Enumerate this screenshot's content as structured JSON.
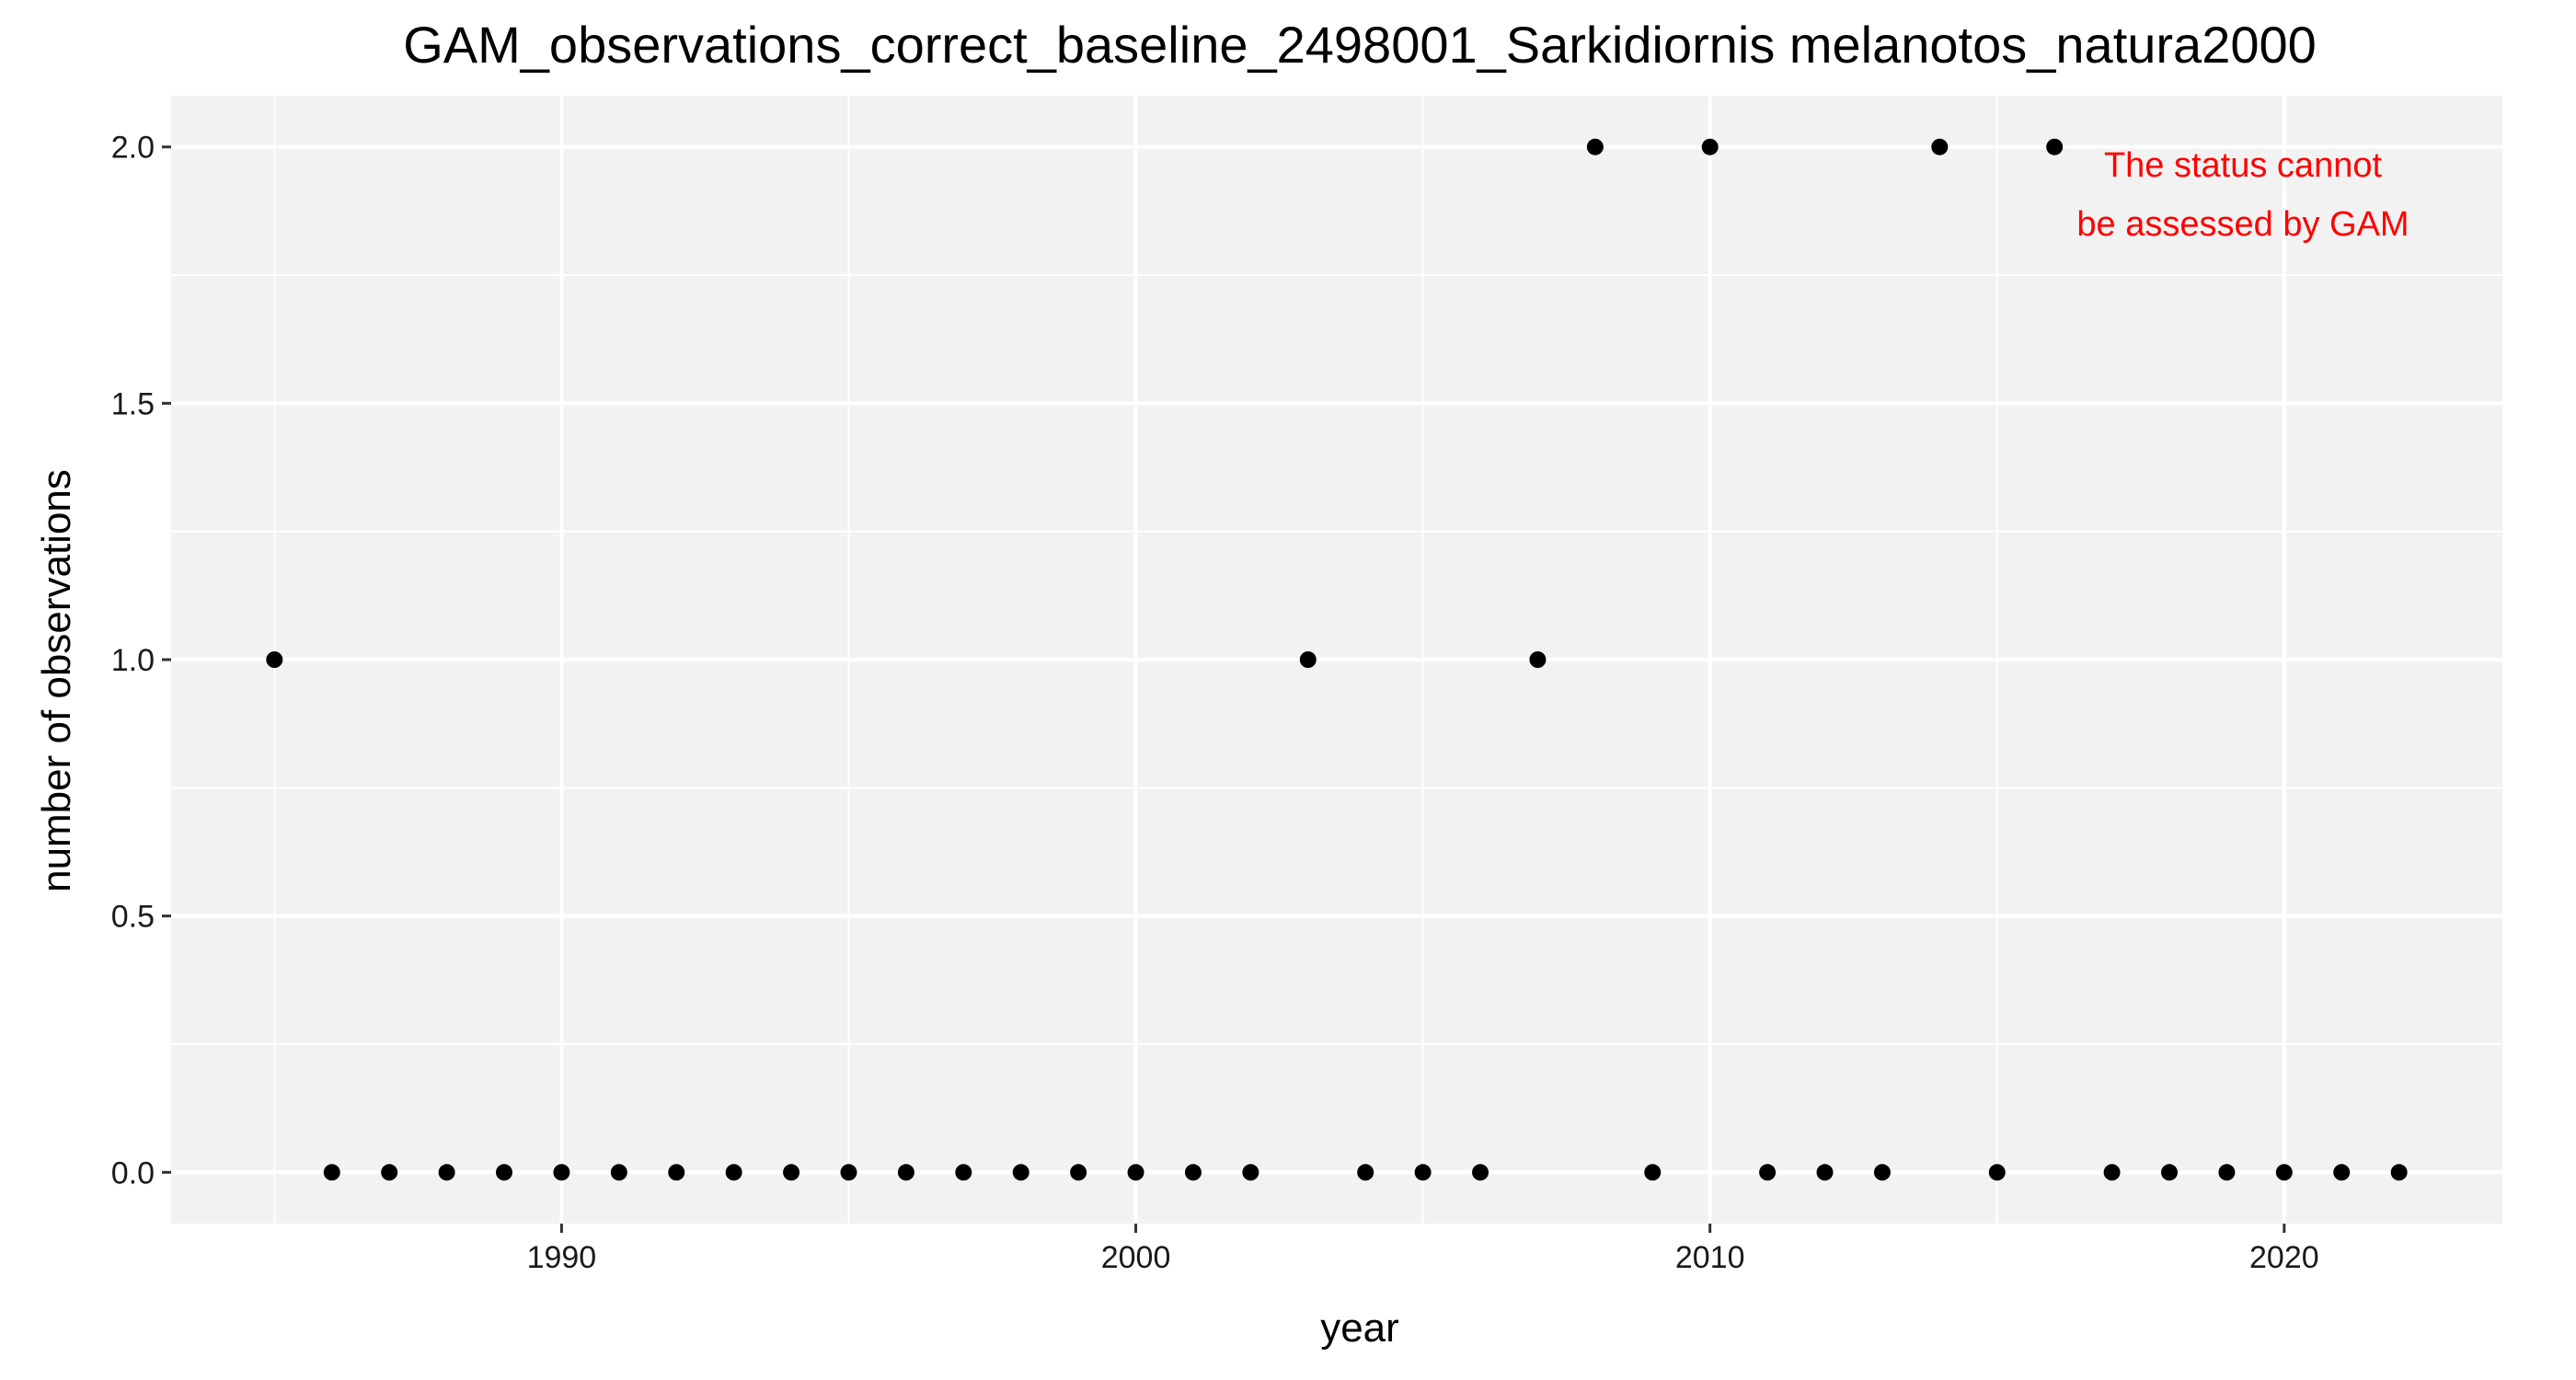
{
  "chart_data": {
    "type": "scatter",
    "title": "GAM_observations_correct_baseline_2498001_Sarkidiornis melanotos_natura2000",
    "xlabel": "year",
    "ylabel": "number of observations",
    "xlim": [
      1983.2,
      2023.8
    ],
    "ylim": [
      -0.1,
      2.1
    ],
    "x_ticks": [
      1990,
      2000,
      2010,
      2020
    ],
    "x_tick_labels": [
      "1990",
      "2000",
      "2010",
      "2020"
    ],
    "y_ticks": [
      0,
      0.5,
      1,
      1.5,
      2
    ],
    "y_tick_labels": [
      "0.0",
      "0.5",
      "1.0",
      "1.5",
      "2.0"
    ],
    "grid": true,
    "panel_color": "#f2f2f2",
    "grid_color": "#ffffff",
    "point_color": "#000000",
    "annotation": {
      "lines": [
        "The status cannot",
        "be assessed by GAM"
      ],
      "color": "#ff0000"
    },
    "series": [
      {
        "x": [
          1985,
          1986,
          1987,
          1988,
          1989,
          1990,
          1991,
          1992,
          1993,
          1994,
          1995,
          1996,
          1997,
          1998,
          1999,
          2000,
          2001,
          2002,
          2003,
          2004,
          2005,
          2006,
          2007,
          2008,
          2009,
          2010,
          2011,
          2012,
          2013,
          2014,
          2015,
          2016,
          2017,
          2018,
          2019,
          2020,
          2021,
          2022
        ],
        "y": [
          1,
          0,
          0,
          0,
          0,
          0,
          0,
          0,
          0,
          0,
          0,
          0,
          0,
          0,
          0,
          0,
          0,
          0,
          1,
          0,
          0,
          0,
          1,
          2,
          0,
          2,
          0,
          0,
          0,
          2,
          0,
          2,
          0,
          0,
          0,
          0,
          0,
          0
        ]
      }
    ]
  }
}
